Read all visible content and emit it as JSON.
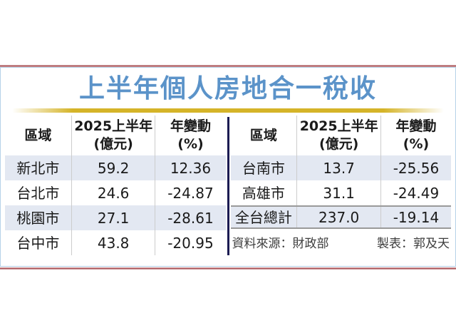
{
  "title": "上半年個人房地合一稅收",
  "columns": {
    "region": "區域",
    "amount_line1": "2025上半年",
    "amount_line2": "(億元)",
    "change_line1": "年變動",
    "change_line2": "(%)"
  },
  "left_table": {
    "rows": [
      {
        "region": "新北市",
        "amount": "59.2",
        "change": "12.36"
      },
      {
        "region": "台北市",
        "amount": "24.6",
        "change": "-24.87"
      },
      {
        "region": "桃園市",
        "amount": "27.1",
        "change": "-28.61"
      },
      {
        "region": "台中市",
        "amount": "43.8",
        "change": "-20.95"
      }
    ]
  },
  "right_table": {
    "rows": [
      {
        "region": "台南市",
        "amount": "13.7",
        "change": "-25.56"
      },
      {
        "region": "高雄市",
        "amount": "31.1",
        "change": "-24.49"
      }
    ],
    "total": {
      "region": "全台總計",
      "amount": "237.0",
      "change": "-19.14"
    }
  },
  "footer": {
    "source": "資料來源：財政部",
    "credit": "製表：郭及天"
  },
  "colors": {
    "title_blue": "#5b93c9",
    "gold_rule": "#d5b428",
    "navy_divider": "#1b1b52",
    "row_shade": "#e3e8f2",
    "red_rule": "#a84a50",
    "panel_border": "#b5d2e8"
  },
  "chart_data": {
    "type": "table",
    "title": "上半年個人房地合一稅收",
    "columns": [
      "區域",
      "2025上半年(億元)",
      "年變動(%)"
    ],
    "rows": [
      [
        "新北市",
        59.2,
        12.36
      ],
      [
        "台北市",
        24.6,
        -24.87
      ],
      [
        "桃園市",
        27.1,
        -28.61
      ],
      [
        "台中市",
        43.8,
        -20.95
      ],
      [
        "台南市",
        13.7,
        -25.56
      ],
      [
        "高雄市",
        31.1,
        -24.49
      ],
      [
        "全台總計",
        237.0,
        -19.14
      ]
    ],
    "source": "資料來源：財政部",
    "credit": "製表：郭及天"
  }
}
